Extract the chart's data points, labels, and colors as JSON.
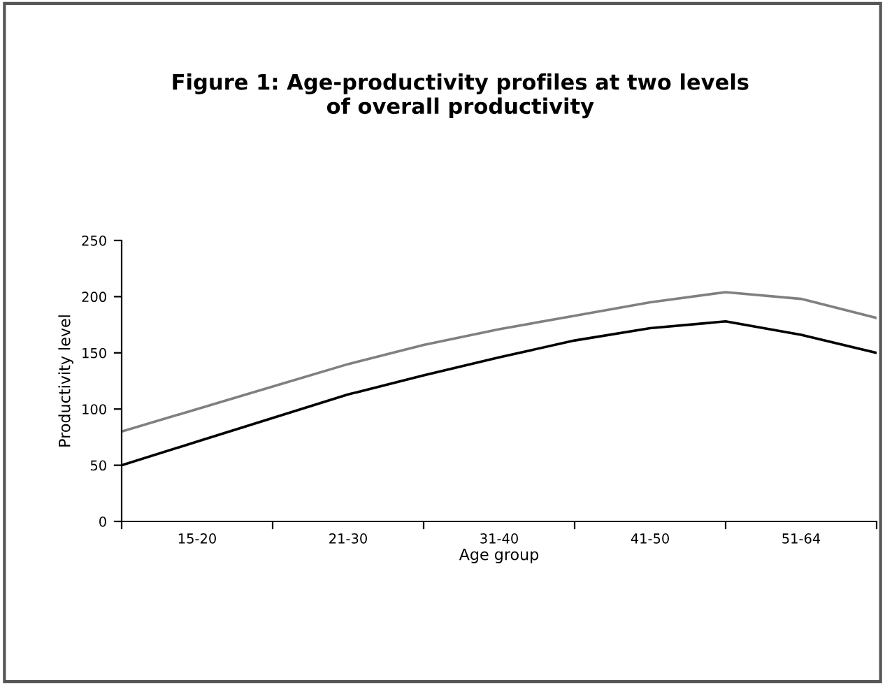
{
  "chart_data": {
    "type": "line",
    "title": "Figure 1: Age-productivity profiles at two levels\nof overall productivity",
    "xlabel": "Age group",
    "ylabel": "Productivity level",
    "categories": [
      null,
      "15-20",
      null,
      "21-30",
      null,
      "31-40",
      null,
      "41-50",
      null,
      "51-64",
      null
    ],
    "ylim": [
      0,
      250
    ],
    "yticks": [
      0,
      50,
      100,
      150,
      200,
      250
    ],
    "marker": "none",
    "line_style": "solid",
    "series": [
      {
        "color": "#808080",
        "values": [
          80,
          100,
          120,
          140,
          157,
          171,
          183,
          195,
          204,
          198,
          181
        ]
      },
      {
        "color": "#000000",
        "values": [
          50,
          71,
          92,
          113,
          130,
          146,
          161,
          172,
          178,
          166,
          150
        ]
      }
    ]
  }
}
